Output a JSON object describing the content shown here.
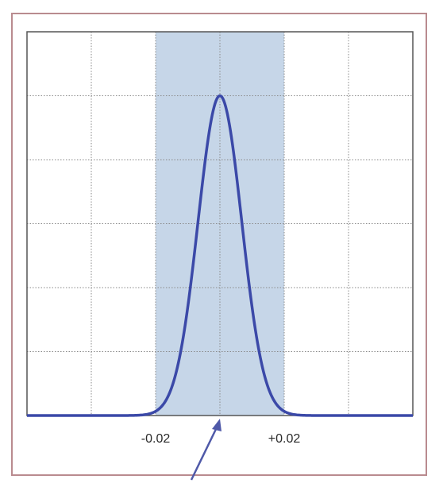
{
  "chart_data": {
    "type": "area",
    "title": "",
    "xlabel": "",
    "ylabel": "",
    "grid": true,
    "xlim": [
      -0.06,
      0.06
    ],
    "ylim": [
      0,
      1.2
    ],
    "grid_x": [
      -0.04,
      -0.02,
      0.0,
      0.02,
      0.04
    ],
    "grid_y": [
      0.2,
      0.4,
      0.6,
      0.8,
      1.0
    ],
    "x_tick_labels": [
      {
        "x": -0.02,
        "label": "-0.02"
      },
      {
        "x": 0.02,
        "label": "+0.02"
      }
    ],
    "shaded_band": {
      "x_from": -0.02,
      "x_to": 0.02,
      "color": "#c6d6e8"
    },
    "series": [
      {
        "color": "#3b49a8",
        "peak_x": 0.0,
        "peak_y": 1.0,
        "sigma": 0.0068
      }
    ],
    "annotations": [
      {
        "type": "arrow",
        "points_to_x": 0.0,
        "color": "#4f59a8"
      }
    ]
  },
  "colors": {
    "frame_border": "#b98b8f",
    "axes_border": "#555555",
    "grid": "#8a8a8a",
    "curve": "#3b49a8",
    "band": "#c6d6e8",
    "arrow": "#4f59a8"
  }
}
